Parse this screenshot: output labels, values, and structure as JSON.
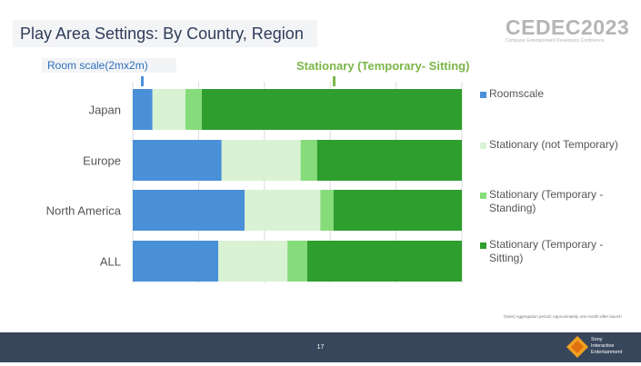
{
  "title": "Play Area Settings: By Country, Region",
  "logo": {
    "main": "CEDEC2023",
    "sub": "Computer Entertainment Developers Conference"
  },
  "annotations": {
    "roomscale": "Room scale(2mx2m)",
    "sitting": "Stationary (Temporary- Sitting)"
  },
  "footnote": "(Note) Aggregation period: Approximately one month after launch",
  "footer": {
    "page_number": "17",
    "company": [
      "Sony",
      "Interactive",
      "Entertainment"
    ]
  },
  "colors": {
    "roomscale": "#4a90d9",
    "not_temporary": "#d9f2d3",
    "standing": "#86dc7b",
    "sitting": "#2e9e2e"
  },
  "chart_data": {
    "type": "bar",
    "orientation": "horizontal",
    "stacked": true,
    "categories": [
      "Japan",
      "Europe",
      "North America",
      "ALL"
    ],
    "xlim": [
      0,
      100
    ],
    "grid": true,
    "legend_position": "right",
    "series": [
      {
        "name": "Roomscale",
        "values": [
          6,
          27,
          34,
          26
        ]
      },
      {
        "name": "Stationary (not Temporary)",
        "values": [
          10,
          24,
          23,
          21
        ]
      },
      {
        "name": "Stationary (Temporary - Standing)",
        "values": [
          5,
          5,
          4,
          6
        ]
      },
      {
        "name": "Stationary (Temporary - Sitting)",
        "values": [
          79,
          44,
          39,
          47
        ]
      }
    ]
  }
}
